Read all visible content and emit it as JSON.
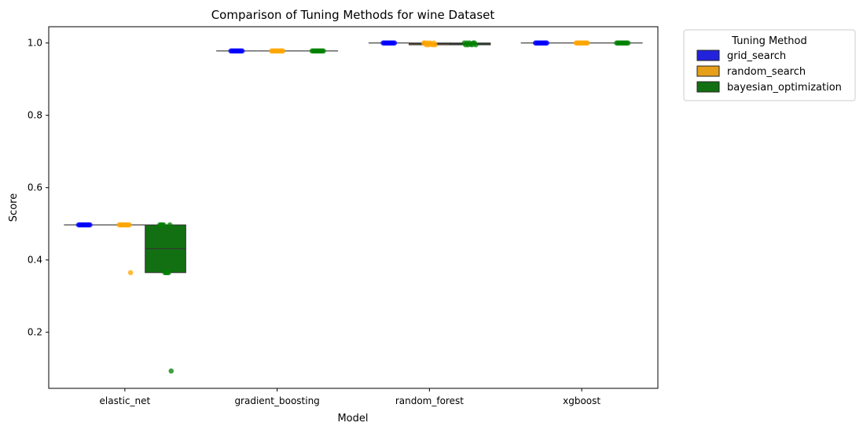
{
  "chart_data": {
    "type": "box",
    "title": "Comparison of Tuning Methods for wine Dataset",
    "xlabel": "Model",
    "ylabel": "Score",
    "ylim": [
      0.045,
      1.045
    ],
    "yticks": [
      0.2,
      0.4,
      0.6,
      0.8,
      1.0
    ],
    "ytick_labels": [
      "0.2",
      "0.4",
      "0.6",
      "0.8",
      "1.0"
    ],
    "categories": [
      "elastic_net",
      "gradient_boosting",
      "random_forest",
      "xgboost"
    ],
    "legend": {
      "title": "Tuning Method",
      "position": "outside-top-right"
    },
    "series": [
      {
        "name": "grid_search",
        "box_color": "#2222dd",
        "point_color": "#0000ff",
        "boxes": [
          {
            "q1": 0.497,
            "median": 0.497,
            "q3": 0.497,
            "whislo": 0.497,
            "whishi": 0.497
          },
          {
            "q1": 0.978,
            "median": 0.978,
            "q3": 0.978,
            "whislo": 0.978,
            "whishi": 0.978
          },
          {
            "q1": 1.0,
            "median": 1.0,
            "q3": 1.0,
            "whislo": 1.0,
            "whishi": 1.0
          },
          {
            "q1": 1.0,
            "median": 1.0,
            "q3": 1.0,
            "whislo": 1.0,
            "whishi": 1.0
          }
        ],
        "points": [
          [
            0.497,
            0.497,
            0.497,
            0.497,
            0.497,
            0.497,
            0.497,
            0.497,
            0.497,
            0.497
          ],
          [
            0.978,
            0.978,
            0.978,
            0.978,
            0.978,
            0.978,
            0.978,
            0.978,
            0.978,
            0.978
          ],
          [
            1.0,
            1.0,
            1.0,
            1.0,
            1.0,
            1.0,
            1.0,
            1.0,
            1.0,
            1.0
          ],
          [
            1.0,
            1.0,
            1.0,
            1.0,
            1.0,
            1.0,
            1.0,
            1.0,
            1.0,
            1.0
          ]
        ]
      },
      {
        "name": "random_search",
        "box_color": "#e69f19",
        "point_color": "#ffa500",
        "boxes": [
          {
            "q1": 0.497,
            "median": 0.497,
            "q3": 0.497,
            "whislo": 0.497,
            "whishi": 0.497
          },
          {
            "q1": 0.978,
            "median": 0.978,
            "q3": 0.978,
            "whislo": 0.978,
            "whishi": 0.978
          },
          {
            "q1": 0.995,
            "median": 0.998,
            "q3": 1.0,
            "whislo": 0.995,
            "whishi": 1.0
          },
          {
            "q1": 1.0,
            "median": 1.0,
            "q3": 1.0,
            "whislo": 1.0,
            "whishi": 1.0
          }
        ],
        "points": [
          [
            0.497,
            0.497,
            0.497,
            0.497,
            0.497,
            0.497,
            0.497,
            0.497,
            0.497,
            0.365
          ],
          [
            0.978,
            0.978,
            0.978,
            0.978,
            0.978,
            0.978,
            0.978,
            0.978,
            0.978,
            0.978
          ],
          [
            1.0,
            1.0,
            0.995,
            1.0,
            0.995,
            1.0,
            0.997,
            0.995,
            1.0,
            0.995
          ],
          [
            1.0,
            1.0,
            1.0,
            1.0,
            1.0,
            1.0,
            1.0,
            1.0,
            1.0,
            1.0
          ]
        ]
      },
      {
        "name": "bayesian_optimization",
        "box_color": "#127012",
        "point_color": "#008000",
        "boxes": [
          {
            "q1": 0.365,
            "median": 0.431,
            "q3": 0.497,
            "whislo": 0.365,
            "whishi": 0.497
          },
          {
            "q1": 0.978,
            "median": 0.978,
            "q3": 0.978,
            "whislo": 0.978,
            "whishi": 0.978
          },
          {
            "q1": 0.995,
            "median": 0.998,
            "q3": 1.0,
            "whislo": 0.995,
            "whishi": 1.0
          },
          {
            "q1": 1.0,
            "median": 1.0,
            "q3": 1.0,
            "whislo": 1.0,
            "whishi": 1.0
          }
        ],
        "points": [
          [
            0.497,
            0.497,
            0.497,
            0.497,
            0.365,
            0.365,
            0.365,
            0.365,
            0.497,
            0.093
          ],
          [
            0.978,
            0.978,
            0.978,
            0.978,
            0.978,
            0.978,
            0.978,
            0.978,
            0.978,
            0.978
          ],
          [
            1.0,
            0.995,
            1.0,
            0.995,
            1.0,
            0.997,
            0.995,
            1.0,
            1.0,
            0.995
          ],
          [
            1.0,
            1.0,
            1.0,
            1.0,
            1.0,
            1.0,
            1.0,
            1.0,
            1.0,
            1.0
          ]
        ]
      }
    ]
  }
}
